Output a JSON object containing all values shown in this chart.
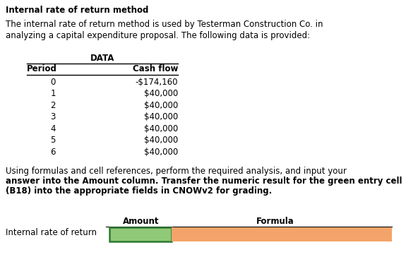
{
  "title": "Internal rate of return method",
  "intro_line1": "The internal rate of return method is used by Testerman Construction Co. in",
  "intro_line2": "analyzing a capital expenditure proposal. The following data is provided:",
  "data_header": "DATA",
  "col1_header": "Period",
  "col2_header": "Cash flow",
  "periods": [
    "0",
    "1",
    "2",
    "3",
    "4",
    "5",
    "6"
  ],
  "cash_flows": [
    "-$174,160",
    "$40,000",
    "$40,000",
    "$40,000",
    "$40,000",
    "$40,000",
    "$40,000"
  ],
  "footer_line1": "Using formulas and cell references, perform the required analysis, and input your",
  "footer_line2": "answer into the Amount column. Transfer the numeric result for the green entry cell",
  "footer_line3": "(B18) into the appropriate fields in CNOWv2 for grading.",
  "amount_label": "Amount",
  "formula_label": "Formula",
  "row_label": "Internal rate of return",
  "green_cell_color": "#90c978",
  "green_cell_border": "#2d7a32",
  "orange_cell_color": "#f4a46a",
  "table_line_color": "#000000",
  "bg_color": "#ffffff",
  "title_fontsize": 8.5,
  "body_fontsize": 8.5,
  "table_fontsize": 8.5,
  "header_fontsize": 8.5
}
